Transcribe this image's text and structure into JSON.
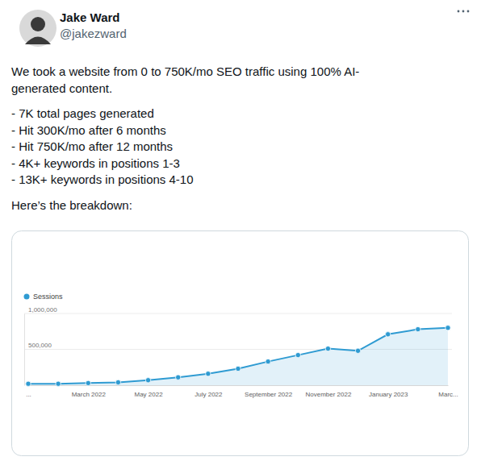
{
  "tweet": {
    "name": "Jake Ward",
    "handle": "@jakezward",
    "text": [
      [
        "We took a website from 0 to 750K/mo SEO traffic using 100% AI-",
        "generated content."
      ],
      [
        "- 7K total pages generated",
        "- Hit 300K/mo after 6 months",
        "- Hit 750K/mo after 12 months",
        "- 4K+ keywords in positions 1-3",
        "- 13K+ keywords in positions 4-10"
      ],
      [
        "Here’s the breakdown:"
      ]
    ]
  },
  "chart_data": {
    "type": "area",
    "categories": [
      "...",
      null,
      "March 2022",
      null,
      "May 2022",
      null,
      "July 2022",
      null,
      "September 2022",
      null,
      "November 2022",
      null,
      "January 2023",
      null,
      "Marc..."
    ],
    "series": [
      {
        "name": "Sessions",
        "color": "#2f9bd2",
        "marker": "circle",
        "values": [
          20000,
          20000,
          30000,
          40000,
          70000,
          110000,
          160000,
          230000,
          330000,
          420000,
          510000,
          480000,
          710000,
          780000,
          800000
        ]
      }
    ],
    "ylim": [
      0,
      1000000
    ],
    "yticks": [
      {
        "value": 500000,
        "label": "500,000"
      },
      {
        "value": 1000000,
        "label": "1,000,000"
      }
    ],
    "grid": true,
    "legend": "top-left"
  }
}
